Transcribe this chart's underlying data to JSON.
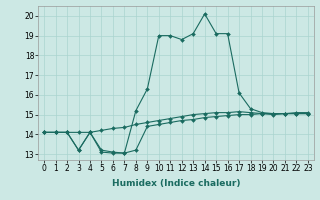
{
  "xlabel": "Humidex (Indice chaleur)",
  "bg_color": "#cce8e4",
  "grid_color": "#aad4cf",
  "line_color": "#1a6b60",
  "xlim": [
    -0.5,
    23.5
  ],
  "ylim": [
    12.7,
    20.5
  ],
  "xticks": [
    0,
    1,
    2,
    3,
    4,
    5,
    6,
    7,
    8,
    9,
    10,
    11,
    12,
    13,
    14,
    15,
    16,
    17,
    18,
    19,
    20,
    21,
    22,
    23
  ],
  "yticks": [
    13,
    14,
    15,
    16,
    17,
    18,
    19,
    20
  ],
  "series1_x": [
    0,
    1,
    2,
    3,
    4,
    5,
    6,
    7,
    8,
    9,
    10,
    11,
    12,
    13,
    14,
    15,
    16,
    17,
    18,
    19,
    20,
    21,
    22,
    23
  ],
  "series1_y": [
    14.1,
    14.1,
    14.1,
    14.1,
    14.1,
    14.2,
    14.3,
    14.35,
    14.5,
    14.6,
    14.7,
    14.8,
    14.9,
    15.0,
    15.05,
    15.1,
    15.1,
    15.15,
    15.1,
    15.05,
    15.0,
    15.05,
    15.05,
    15.05
  ],
  "series2_x": [
    0,
    1,
    2,
    3,
    4,
    5,
    6,
    7,
    8,
    9,
    10,
    11,
    12,
    13,
    14,
    15,
    16,
    17,
    18,
    19,
    20,
    21,
    22,
    23
  ],
  "series2_y": [
    14.1,
    14.1,
    14.1,
    13.2,
    14.1,
    13.1,
    13.05,
    13.05,
    13.2,
    14.4,
    14.5,
    14.6,
    14.7,
    14.75,
    14.85,
    14.9,
    14.95,
    15.0,
    15.0,
    15.05,
    15.05,
    15.05,
    15.1,
    15.1
  ],
  "series3_x": [
    0,
    1,
    2,
    3,
    4,
    5,
    6,
    7,
    8,
    9,
    10,
    11,
    12,
    13,
    14,
    15,
    16,
    17,
    18,
    19,
    20,
    21,
    22,
    23
  ],
  "series3_y": [
    14.1,
    14.1,
    14.1,
    13.2,
    14.1,
    13.2,
    13.1,
    13.05,
    15.2,
    16.3,
    19.0,
    19.0,
    18.8,
    19.1,
    20.1,
    19.1,
    19.1,
    16.1,
    15.3,
    15.1,
    15.05,
    15.05,
    15.05,
    15.05
  ],
  "marker": "D",
  "markersize": 2.0,
  "linewidth": 0.8,
  "xlabel_fontsize": 6.5,
  "tick_fontsize": 5.5
}
